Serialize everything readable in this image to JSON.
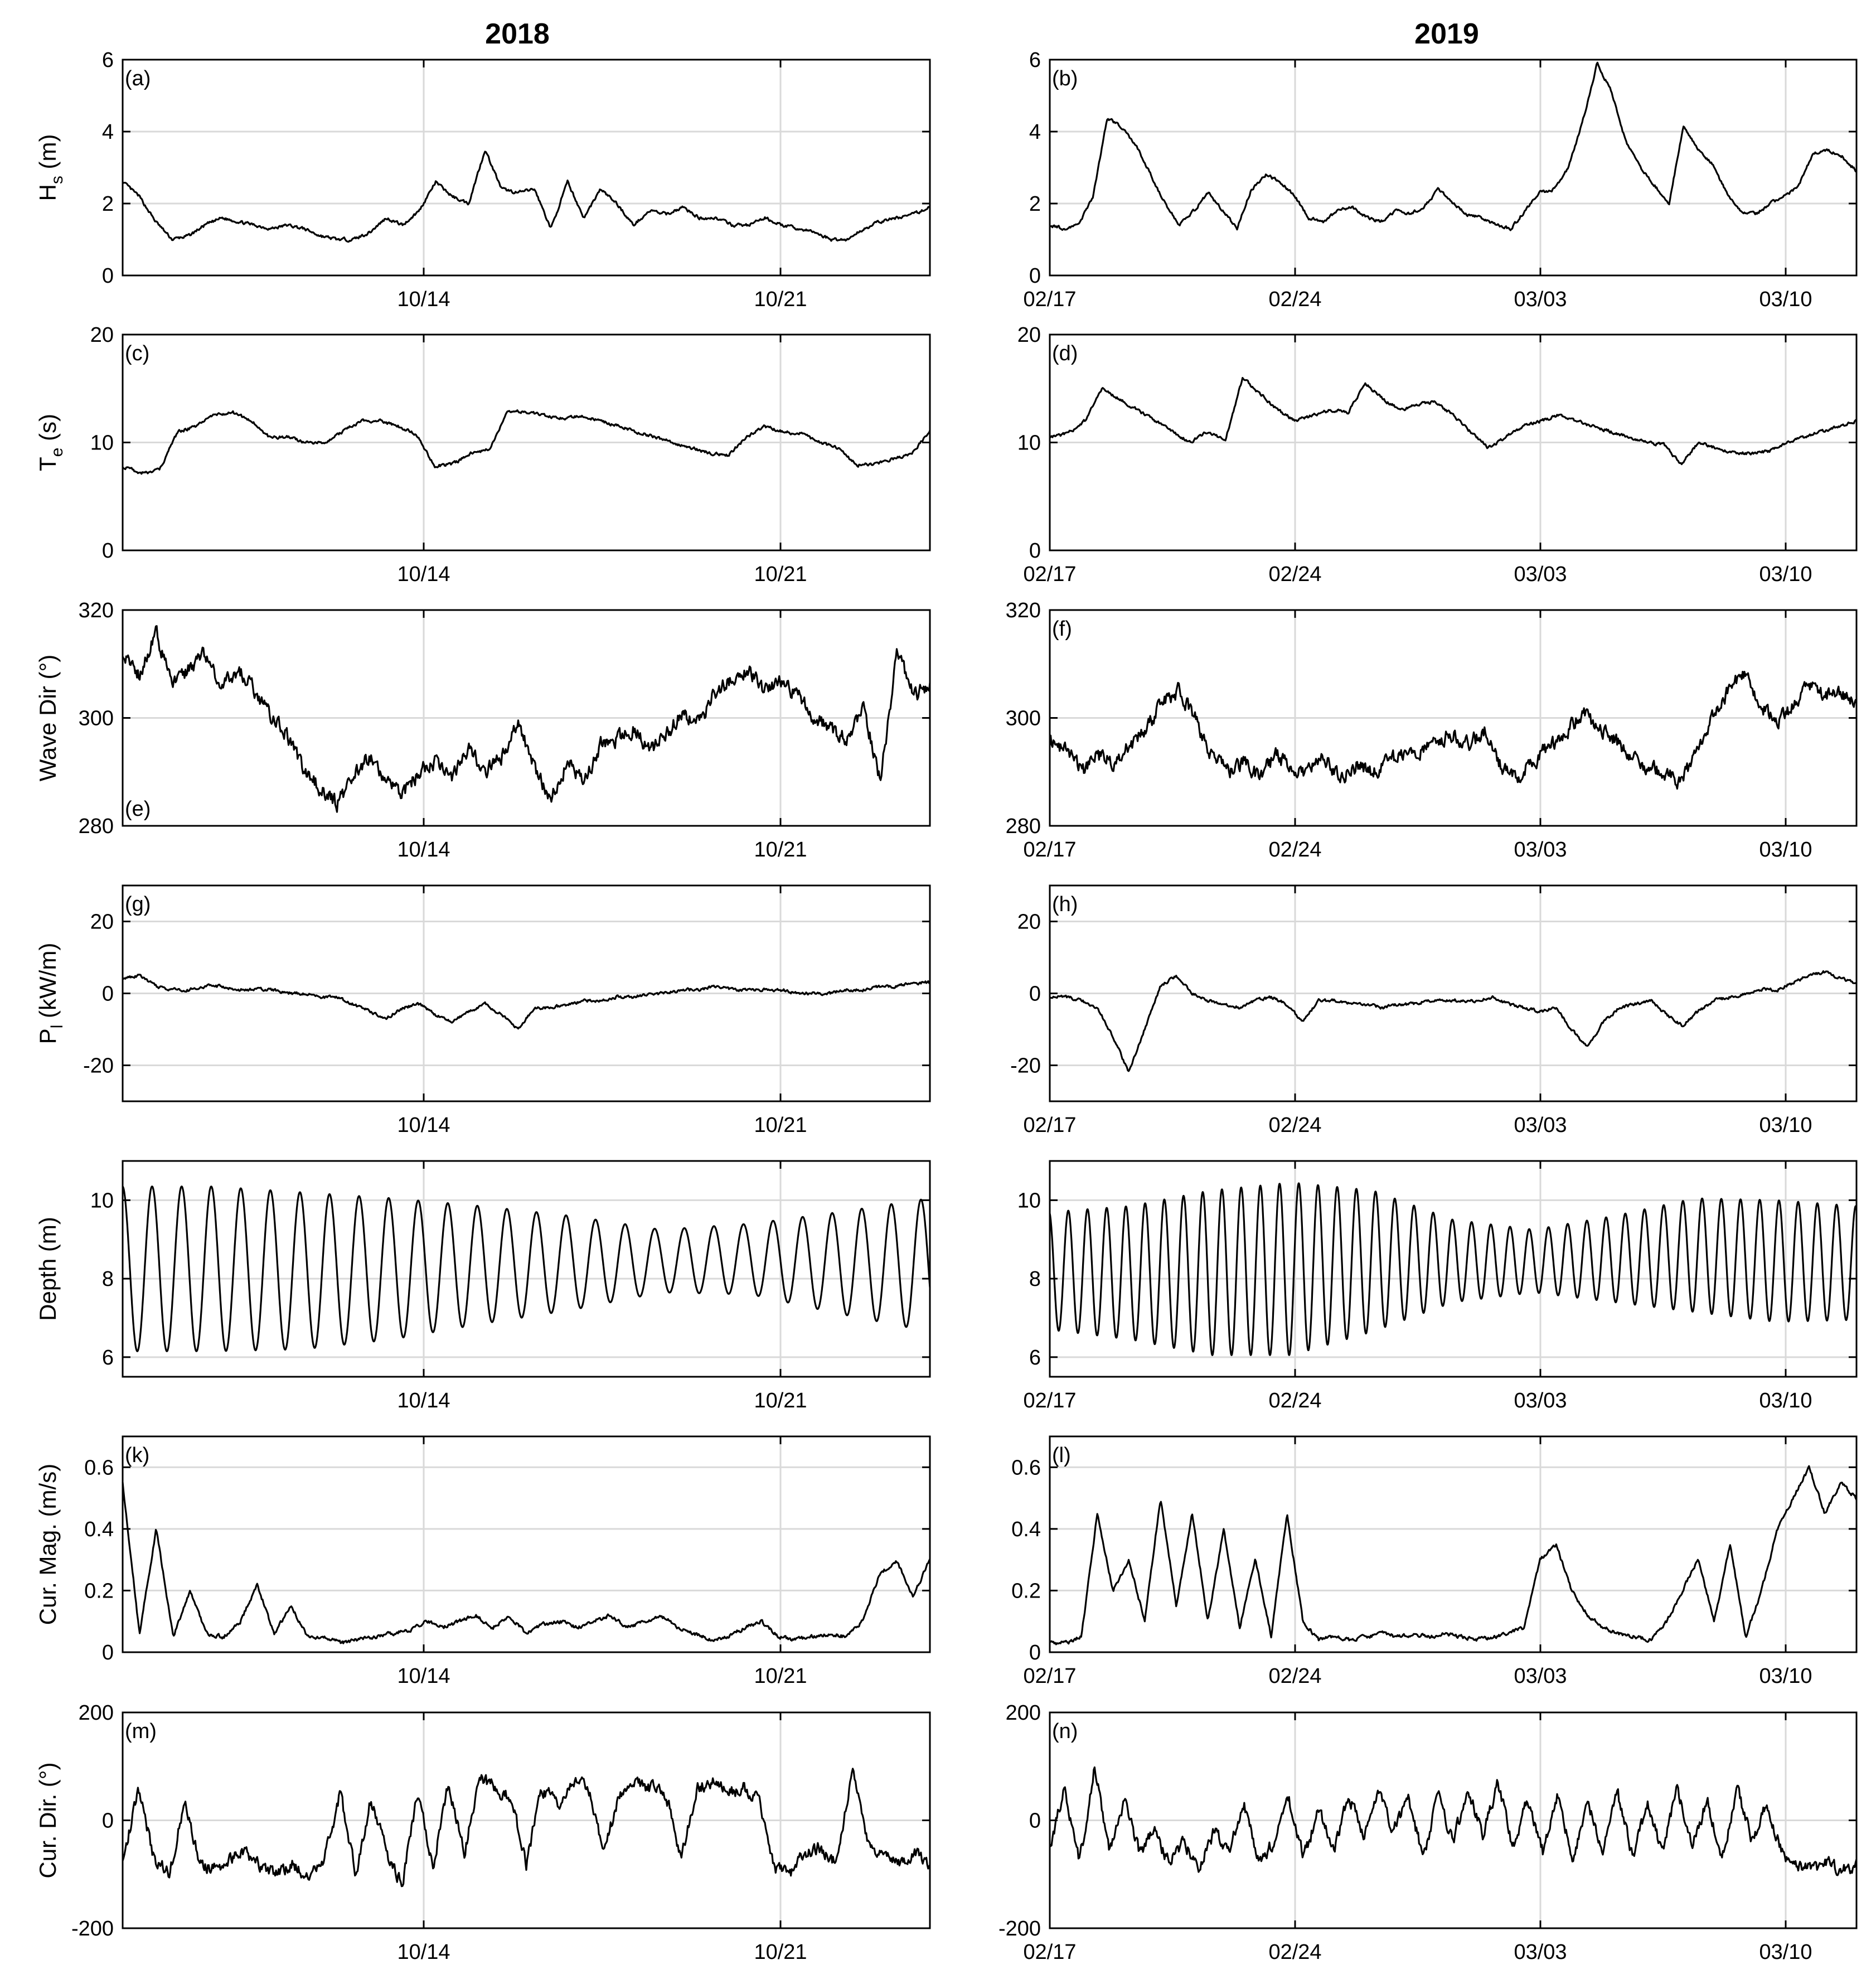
{
  "column_titles": [
    "2018",
    "2019"
  ],
  "chart_data": [
    {
      "id": "a",
      "type": "line",
      "label": "(a)",
      "ylabel": "H_s (m)",
      "ylim": [
        0,
        6
      ],
      "yticks": [
        0,
        2,
        4,
        6
      ],
      "xticks": [
        "10/14",
        "10/21"
      ],
      "series": [
        {
          "values": [
            2.6,
            2.2,
            1.5,
            1.0,
            1.1,
            1.4,
            1.6,
            1.5,
            1.4,
            1.3,
            1.4,
            1.3,
            1.1,
            1.0,
            1.0,
            1.2,
            1.6,
            1.4,
            1.8,
            2.6,
            2.2,
            2.0,
            3.5,
            2.4,
            2.3,
            2.4,
            1.3,
            2.6,
            1.6,
            2.4,
            2.0,
            1.4,
            1.8,
            1.7,
            1.9,
            1.6,
            1.6,
            1.4,
            1.4,
            1.6,
            1.4,
            1.3,
            1.2,
            1.0,
            1.0,
            1.3,
            1.5,
            1.6,
            1.7,
            1.9
          ]
        }
      ]
    },
    {
      "id": "b",
      "type": "line",
      "label": "(b)",
      "ylabel": "",
      "ylim": [
        0,
        6
      ],
      "yticks": [
        0,
        2,
        4,
        6
      ],
      "xticks": [
        "02/17",
        "02/24",
        "03/03",
        "03/10"
      ],
      "series": [
        {
          "values": [
            1.4,
            1.3,
            1.4,
            2.2,
            4.4,
            4.1,
            3.6,
            2.8,
            2.0,
            1.4,
            1.8,
            2.3,
            1.8,
            1.3,
            2.4,
            2.8,
            2.6,
            2.2,
            1.6,
            1.5,
            1.8,
            1.9,
            1.6,
            1.5,
            1.8,
            1.7,
            1.9,
            2.4,
            2.0,
            1.7,
            1.6,
            1.4,
            1.3,
            1.8,
            2.3,
            2.4,
            3.0,
            4.3,
            5.9,
            5.1,
            3.7,
            3.0,
            2.5,
            2.0,
            4.2,
            3.5,
            3.1,
            2.3,
            1.8,
            1.7,
            2.0,
            2.2,
            2.5,
            3.4,
            3.5,
            3.3,
            2.9
          ]
        }
      ]
    },
    {
      "id": "c",
      "type": "line",
      "label": "(c)",
      "ylabel": "T_e (s)",
      "ylim": [
        0,
        20
      ],
      "yticks": [
        0,
        10,
        20
      ],
      "xticks": [
        "10/14",
        "10/21"
      ],
      "series": [
        {
          "values": [
            7.8,
            7.2,
            7.4,
            11.0,
            11.5,
            12.5,
            12.8,
            12.0,
            10.5,
            10.5,
            10.0,
            10.0,
            11.0,
            12.0,
            12.0,
            11.5,
            10.8,
            7.8,
            8.0,
            9.0,
            9.4,
            13.0,
            12.8,
            12.5,
            12.2,
            12.5,
            12.0,
            11.5,
            11.0,
            10.5,
            10.0,
            9.5,
            9.0,
            8.8,
            10.5,
            11.5,
            11.0,
            10.8,
            10.0,
            9.5,
            7.9,
            8.0,
            8.5,
            9.0,
            11.0
          ]
        }
      ]
    },
    {
      "id": "d",
      "type": "line",
      "label": "(d)",
      "ylabel": "",
      "ylim": [
        0,
        20
      ],
      "yticks": [
        0,
        10,
        20
      ],
      "xticks": [
        "02/17",
        "02/24",
        "03/03",
        "03/10"
      ],
      "series": [
        {
          "values": [
            10.5,
            10.8,
            12.0,
            15.0,
            14.0,
            13.0,
            12.0,
            11.0,
            10.0,
            11.0,
            10.2,
            16.0,
            14.5,
            13.0,
            12.0,
            12.5,
            13.0,
            12.8,
            15.5,
            14.0,
            13.0,
            13.5,
            13.8,
            12.5,
            11.0,
            9.5,
            10.5,
            11.5,
            12.0,
            12.5,
            12.0,
            11.5,
            11.0,
            10.5,
            10.0,
            9.8,
            8.0,
            10.0,
            9.5,
            9.0,
            9.0,
            9.2,
            10.0,
            10.5,
            11.0,
            11.5,
            12.0
          ]
        }
      ]
    },
    {
      "id": "e",
      "type": "line",
      "label": "(e)",
      "ylabel": "Wave Dir (°)",
      "ylim": [
        280,
        320
      ],
      "yticks": [
        280,
        300,
        320
      ],
      "xticks": [
        "10/14",
        "10/21"
      ],
      "series": [
        {
          "values": [
            312,
            308,
            316,
            306,
            309,
            312,
            306,
            309,
            305,
            300,
            297,
            290,
            287,
            284,
            289,
            293,
            288,
            286,
            290,
            292,
            289,
            294,
            290,
            293,
            299,
            291,
            285,
            292,
            288,
            295,
            296,
            298,
            294,
            297,
            301,
            299,
            305,
            307,
            309,
            305,
            307,
            304,
            300,
            298,
            296,
            302,
            288,
            312,
            304,
            306
          ]
        }
      ]
    },
    {
      "id": "f",
      "type": "line",
      "label": "(f)",
      "ylabel": "",
      "ylim": [
        280,
        320
      ],
      "yticks": [
        280,
        300,
        320
      ],
      "xticks": [
        "02/17",
        "02/24",
        "03/03",
        "03/10"
      ],
      "series": [
        {
          "values": [
            296,
            294,
            290,
            293,
            292,
            295,
            298,
            303,
            305,
            300,
            293,
            290,
            292,
            289,
            293,
            291,
            290,
            293,
            289,
            291,
            290,
            292,
            293,
            294,
            296,
            297,
            295,
            298,
            291,
            289,
            292,
            295,
            297,
            301,
            298,
            296,
            293,
            291,
            290,
            288,
            293,
            300,
            305,
            308,
            303,
            299,
            302,
            306,
            304,
            305,
            303
          ]
        }
      ]
    },
    {
      "id": "g",
      "type": "line",
      "label": "(g)",
      "ylabel": "P_l (kW/m)",
      "ylim": [
        -30,
        30
      ],
      "yticks": [
        -20,
        0,
        20
      ],
      "xticks": [
        "10/14",
        "10/21"
      ],
      "series": [
        {
          "values": [
            4,
            5,
            2,
            1,
            1,
            2,
            2,
            1,
            1,
            1,
            0,
            0,
            -1,
            -1,
            -3,
            -5,
            -7,
            -4,
            -3,
            -6,
            -8,
            -5,
            -3,
            -6,
            -10,
            -4,
            -4,
            -3,
            -2,
            -2,
            -1,
            -1,
            0,
            0,
            1,
            1,
            2,
            1,
            1,
            1,
            1,
            0,
            0,
            0,
            1,
            1,
            2,
            2,
            3,
            3
          ]
        }
      ]
    },
    {
      "id": "h",
      "type": "line",
      "label": "(h)",
      "ylabel": "",
      "ylim": [
        -30,
        30
      ],
      "yticks": [
        -20,
        0,
        20
      ],
      "xticks": [
        "02/17",
        "02/24",
        "03/03",
        "03/10"
      ],
      "series": [
        {
          "values": [
            -1,
            -1,
            -2,
            -4,
            -12,
            -22,
            -10,
            2,
            5,
            0,
            -2,
            -3,
            -4,
            -2,
            -1,
            -3,
            -8,
            -2,
            -2,
            -3,
            -3,
            -4,
            -3,
            -3,
            -2,
            -2,
            -2,
            -2,
            -1,
            -3,
            -4,
            -5,
            -4,
            -10,
            -15,
            -8,
            -4,
            -3,
            -2,
            -6,
            -9,
            -5,
            -2,
            -1,
            0,
            1,
            1,
            3,
            5,
            6,
            4,
            3
          ]
        }
      ]
    },
    {
      "id": "i",
      "type": "line",
      "label": "",
      "ylabel": "Depth (m)",
      "ylim": [
        5.5,
        11
      ],
      "yticks": [
        6,
        8,
        10
      ],
      "xticks": [
        "10/14",
        "10/21"
      ],
      "series": [
        {
          "n_cycles": 27.3,
          "phase": 1.6,
          "mean": [
            8.25,
            8.25,
            8.2,
            8.25,
            8.35,
            8.4,
            8.45,
            8.5,
            8.4,
            8.35
          ],
          "amplitude": [
            2.1,
            2.1,
            2.0,
            1.8,
            1.5,
            1.2,
            0.8,
            0.9,
            1.3,
            1.7
          ]
        }
      ]
    },
    {
      "id": "j",
      "type": "line",
      "label": "",
      "ylabel": "",
      "ylim": [
        5.5,
        11
      ],
      "yticks": [
        6,
        8,
        10
      ],
      "xticks": [
        "02/17",
        "02/24",
        "03/03",
        "03/10"
      ],
      "series": [
        {
          "n_cycles": 42,
          "phase": 1.8,
          "mean": [
            8.2,
            8.15,
            8.15,
            8.25,
            8.45,
            8.45,
            8.45,
            8.5,
            8.6,
            8.45,
            8.4
          ],
          "amplitude": [
            1.5,
            1.7,
            2.1,
            2.2,
            1.8,
            1.05,
            0.8,
            1.1,
            1.45,
            1.55,
            1.45
          ]
        }
      ]
    },
    {
      "id": "k",
      "type": "line",
      "label": "(k)",
      "ylabel": "Cur. Mag. (m/s)",
      "ylim": [
        0,
        0.7
      ],
      "yticks": [
        0,
        0.2,
        0.4,
        0.6
      ],
      "xticks": [
        "10/14",
        "10/21"
      ],
      "series": [
        {
          "values": [
            0.55,
            0.06,
            0.4,
            0.05,
            0.2,
            0.06,
            0.05,
            0.1,
            0.22,
            0.06,
            0.15,
            0.05,
            0.05,
            0.03,
            0.04,
            0.05,
            0.06,
            0.07,
            0.1,
            0.08,
            0.1,
            0.12,
            0.08,
            0.12,
            0.06,
            0.09,
            0.1,
            0.08,
            0.1,
            0.12,
            0.08,
            0.1,
            0.12,
            0.08,
            0.06,
            0.04,
            0.05,
            0.08,
            0.1,
            0.05,
            0.04,
            0.05,
            0.06,
            0.05,
            0.1,
            0.25,
            0.3,
            0.18,
            0.3
          ]
        }
      ]
    },
    {
      "id": "l",
      "type": "line",
      "label": "(l)",
      "ylabel": "",
      "ylim": [
        0,
        0.7
      ],
      "yticks": [
        0,
        0.2,
        0.4,
        0.6
      ],
      "xticks": [
        "02/17",
        "02/24",
        "03/03",
        "03/10"
      ],
      "series": [
        {
          "values": [
            0.03,
            0.03,
            0.05,
            0.45,
            0.2,
            0.3,
            0.1,
            0.5,
            0.15,
            0.45,
            0.1,
            0.4,
            0.08,
            0.3,
            0.05,
            0.45,
            0.1,
            0.04,
            0.05,
            0.04,
            0.05,
            0.06,
            0.05,
            0.06,
            0.05,
            0.06,
            0.05,
            0.04,
            0.05,
            0.06,
            0.08,
            0.3,
            0.35,
            0.2,
            0.12,
            0.08,
            0.06,
            0.05,
            0.04,
            0.1,
            0.2,
            0.3,
            0.1,
            0.35,
            0.05,
            0.2,
            0.4,
            0.5,
            0.6,
            0.45,
            0.55,
            0.5
          ]
        }
      ]
    },
    {
      "id": "m",
      "type": "line",
      "label": "(m)",
      "ylabel": "Cur. Dir. (°)",
      "ylim": [
        -200,
        200
      ],
      "yticks": [
        -200,
        0,
        200
      ],
      "xticks": [
        "10/14",
        "10/21"
      ],
      "series": [
        {
          "values": [
            -80,
            60,
            -70,
            -100,
            40,
            -80,
            -90,
            -70,
            -60,
            -90,
            -100,
            -80,
            -110,
            -70,
            50,
            -100,
            40,
            -60,
            -120,
            50,
            -80,
            70,
            -60,
            80,
            60,
            40,
            -80,
            60,
            30,
            70,
            60,
            -60,
            50,
            70,
            60,
            50,
            -70,
            60,
            70,
            50,
            60,
            40,
            -90,
            -100,
            -60,
            -50,
            -80,
            90,
            -40,
            -70,
            -80,
            -60,
            -80
          ]
        }
      ]
    },
    {
      "id": "n",
      "type": "line",
      "label": "(n)",
      "ylabel": "",
      "ylim": [
        -200,
        200
      ],
      "yticks": [
        -200,
        0,
        200
      ],
      "xticks": [
        "02/17",
        "02/24",
        "03/03",
        "03/10"
      ],
      "series": [
        {
          "values": [
            -50,
            60,
            -80,
            100,
            -60,
            40,
            -60,
            -20,
            -80,
            -40,
            -90,
            -20,
            -60,
            30,
            -80,
            -40,
            40,
            -70,
            20,
            -60,
            50,
            -30,
            60,
            -20,
            40,
            -70,
            50,
            -40,
            60,
            -30,
            70,
            -50,
            40,
            -60,
            50,
            -80,
            40,
            -60,
            50,
            -70,
            30,
            -60,
            60,
            -50,
            40,
            -80,
            60,
            -40,
            30,
            -60,
            -80,
            -90,
            -80,
            -90,
            -85
          ]
        }
      ]
    }
  ]
}
